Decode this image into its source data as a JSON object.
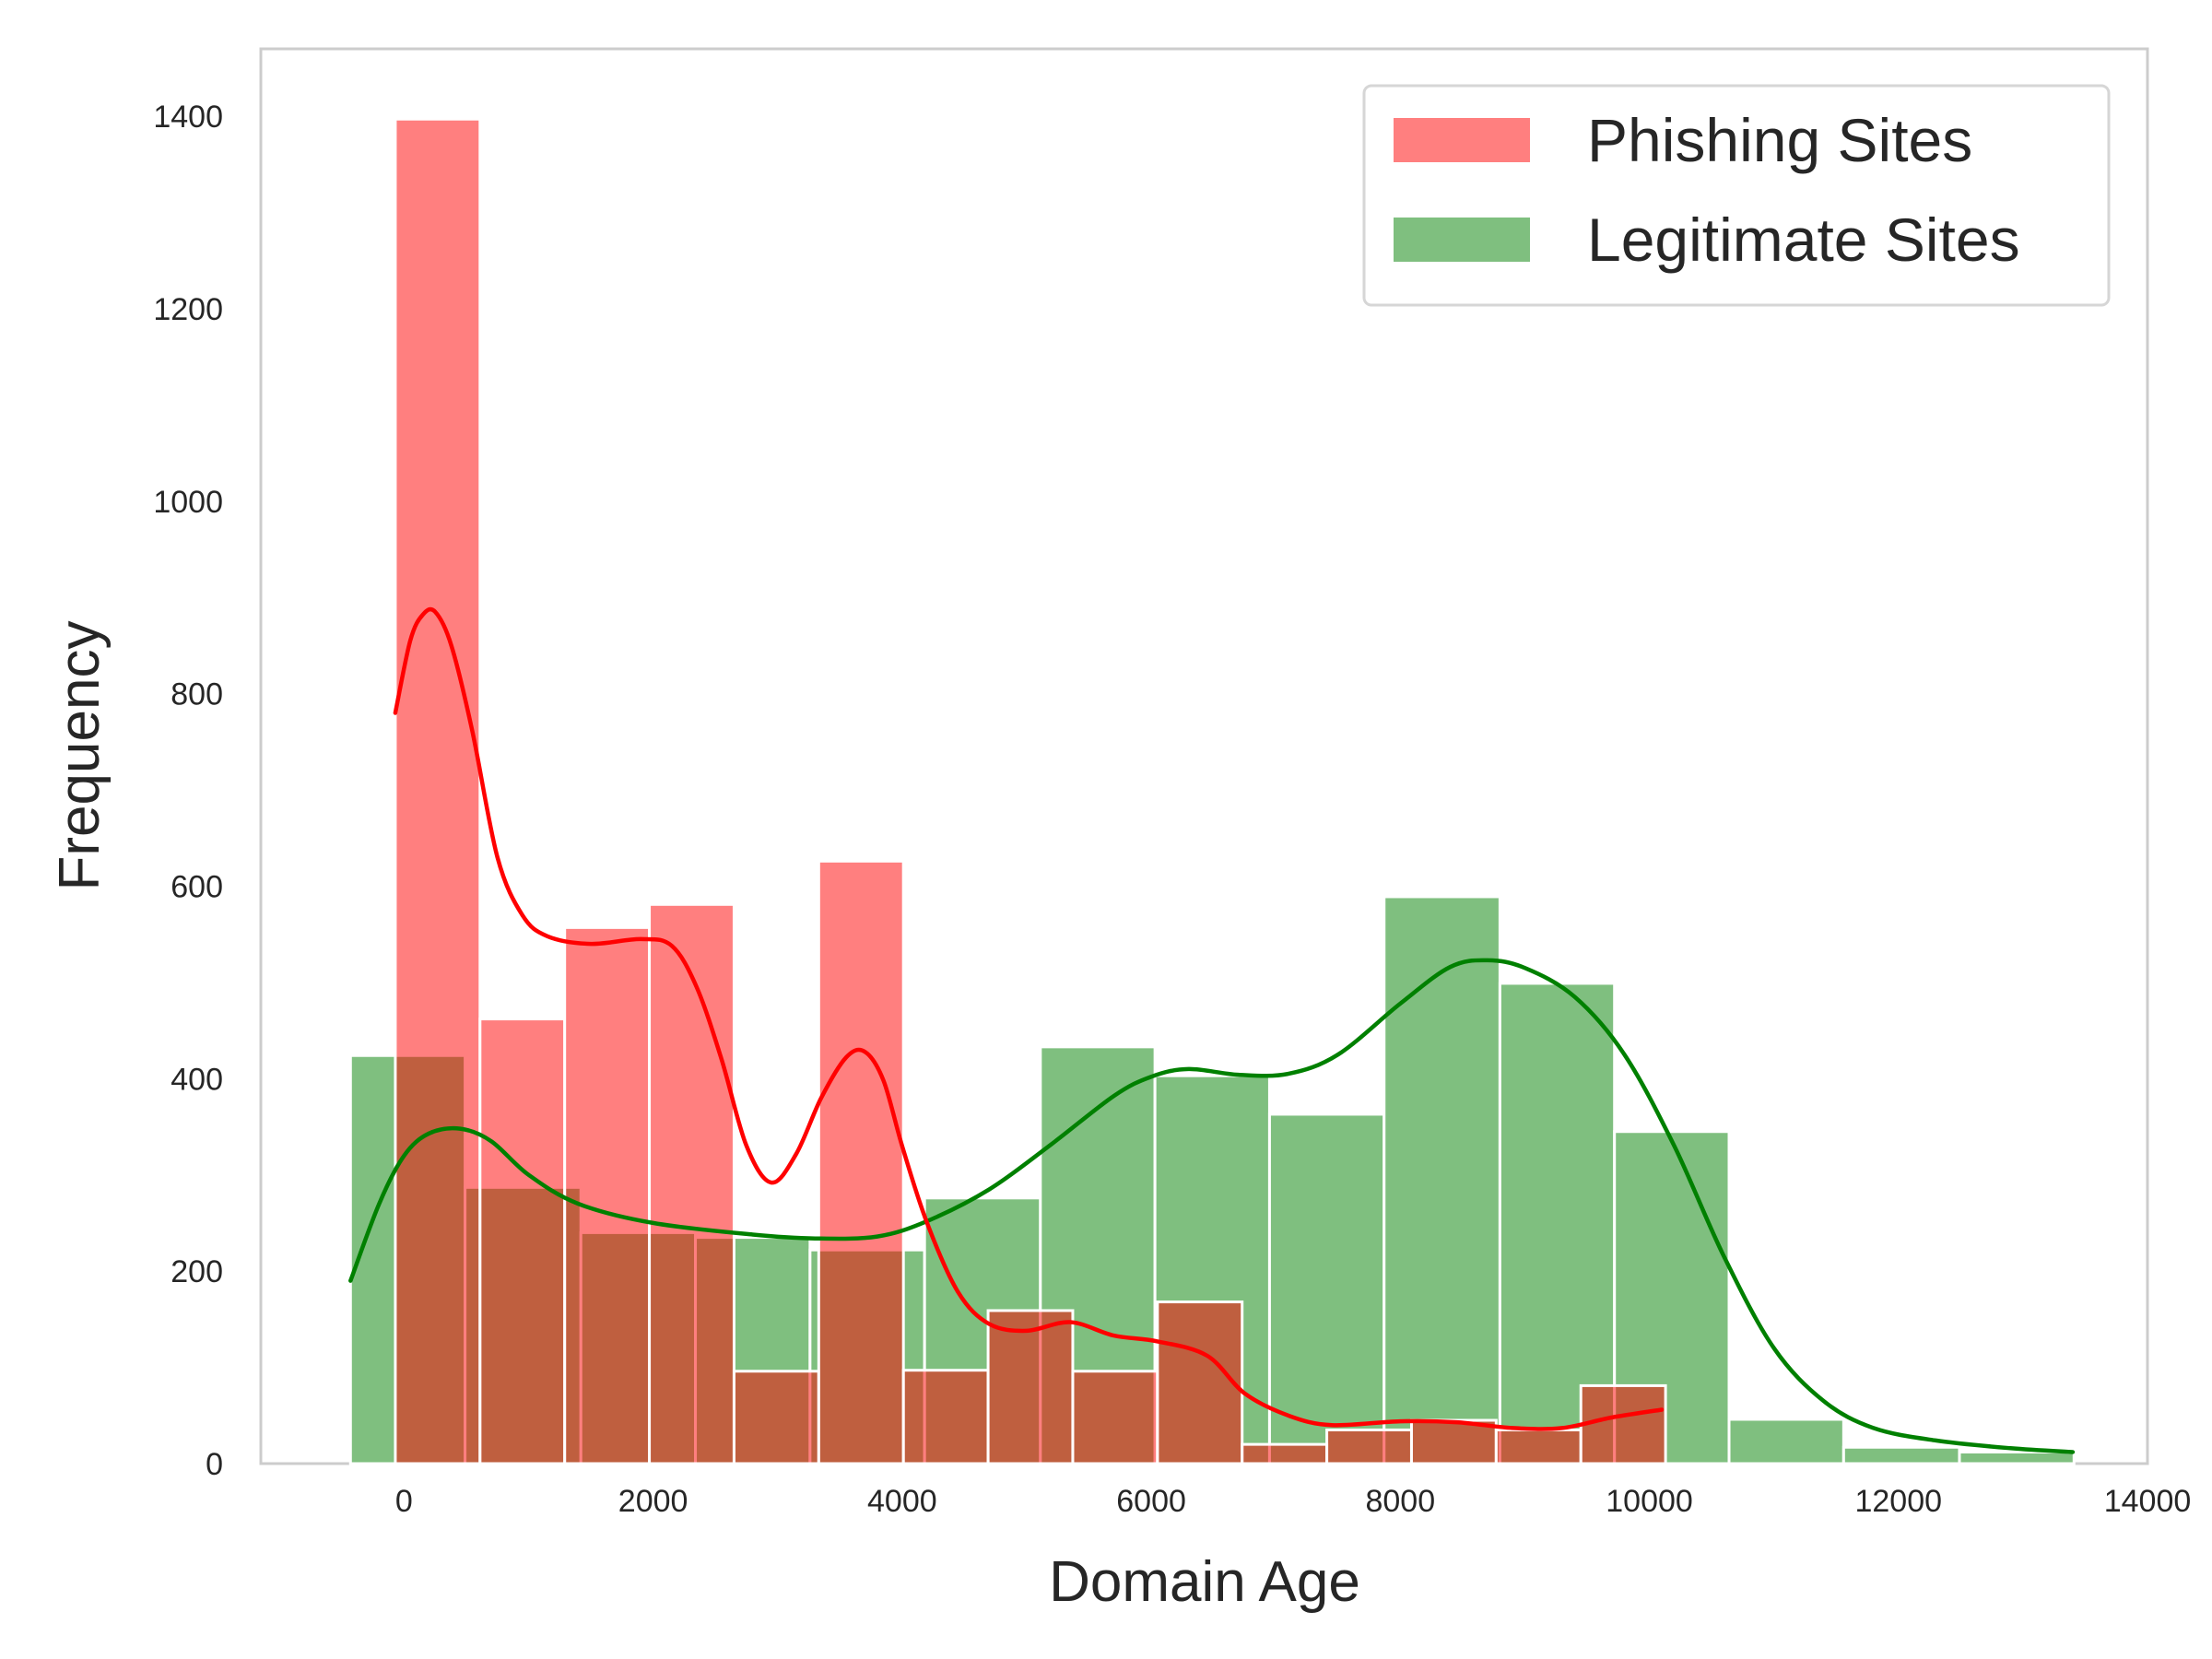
{
  "chart_data": {
    "type": "bar",
    "xlabel": "Domain Age",
    "ylabel": "Frequency",
    "xlim": [
      -1150,
      14000
    ],
    "ylim": [
      0,
      1470
    ],
    "xticks": [
      0,
      2000,
      4000,
      6000,
      8000,
      10000,
      12000,
      14000
    ],
    "yticks": [
      0,
      200,
      400,
      600,
      800,
      1000,
      1200,
      1400
    ],
    "xtick_labels": [
      "0",
      "2000",
      "4000",
      "6000",
      "8000",
      "10000",
      "12000",
      "14000"
    ],
    "ytick_labels": [
      "0",
      "200",
      "400",
      "600",
      "800",
      "1000",
      "1200",
      "1400"
    ],
    "grid": false,
    "legend_position": "top-right",
    "series": [
      {
        "name": "Legitimate Sites",
        "color": "#008000",
        "bin_edges": [
          -430,
          490,
          1420,
          2340,
          3260,
          4180,
          5110,
          6030,
          6950,
          7870,
          8800,
          9720,
          10640,
          11560,
          12490,
          13410
        ],
        "values": [
          424,
          287,
          240,
          235,
          222,
          276,
          433,
          403,
          363,
          589,
          499,
          345,
          46,
          17,
          12
        ],
        "kde": [
          [
            -430,
            190
          ],
          [
            -200,
            270
          ],
          [
            0,
            320
          ],
          [
            200,
            343
          ],
          [
            450,
            348
          ],
          [
            700,
            335
          ],
          [
            1000,
            300
          ],
          [
            1400,
            270
          ],
          [
            2000,
            250
          ],
          [
            2800,
            238
          ],
          [
            3300,
            234
          ],
          [
            3800,
            236
          ],
          [
            4200,
            252
          ],
          [
            4700,
            285
          ],
          [
            5200,
            332
          ],
          [
            5700,
            382
          ],
          [
            6000,
            402
          ],
          [
            6300,
            410
          ],
          [
            6700,
            404
          ],
          [
            7100,
            405
          ],
          [
            7500,
            425
          ],
          [
            8000,
            478
          ],
          [
            8400,
            516
          ],
          [
            8700,
            523
          ],
          [
            9000,
            515
          ],
          [
            9400,
            485
          ],
          [
            9800,
            425
          ],
          [
            10200,
            330
          ],
          [
            10600,
            215
          ],
          [
            11000,
            120
          ],
          [
            11400,
            65
          ],
          [
            11800,
            37
          ],
          [
            12300,
            24
          ],
          [
            12900,
            16
          ],
          [
            13400,
            12
          ]
        ]
      },
      {
        "name": "Phishing Sites",
        "color": "#ff0000",
        "bin_edges": [
          -70,
          610,
          1290,
          1970,
          2650,
          3330,
          4010,
          4690,
          5370,
          6050,
          6730,
          7410,
          8090,
          8770,
          9450,
          10130
        ],
        "values": [
          1397,
          462,
          557,
          581,
          96,
          626,
          97,
          159,
          96,
          168,
          20,
          35,
          45,
          35,
          81
        ],
        "kde": [
          [
            -70,
            780
          ],
          [
            50,
            855
          ],
          [
            150,
            882
          ],
          [
            250,
            885
          ],
          [
            380,
            850
          ],
          [
            550,
            760
          ],
          [
            750,
            630
          ],
          [
            950,
            570
          ],
          [
            1150,
            548
          ],
          [
            1500,
            540
          ],
          [
            1900,
            545
          ],
          [
            2150,
            538
          ],
          [
            2350,
            495
          ],
          [
            2550,
            420
          ],
          [
            2750,
            330
          ],
          [
            2950,
            292
          ],
          [
            3150,
            322
          ],
          [
            3350,
            380
          ],
          [
            3550,
            422
          ],
          [
            3700,
            428
          ],
          [
            3850,
            398
          ],
          [
            4000,
            330
          ],
          [
            4200,
            250
          ],
          [
            4450,
            178
          ],
          [
            4700,
            145
          ],
          [
            5000,
            138
          ],
          [
            5350,
            147
          ],
          [
            5700,
            133
          ],
          [
            6050,
            127
          ],
          [
            6450,
            112
          ],
          [
            6750,
            73
          ],
          [
            7100,
            50
          ],
          [
            7450,
            40
          ],
          [
            8000,
            44
          ],
          [
            8450,
            43
          ],
          [
            8900,
            37
          ],
          [
            9300,
            37
          ],
          [
            9700,
            48
          ],
          [
            10100,
            56
          ]
        ]
      }
    ]
  }
}
